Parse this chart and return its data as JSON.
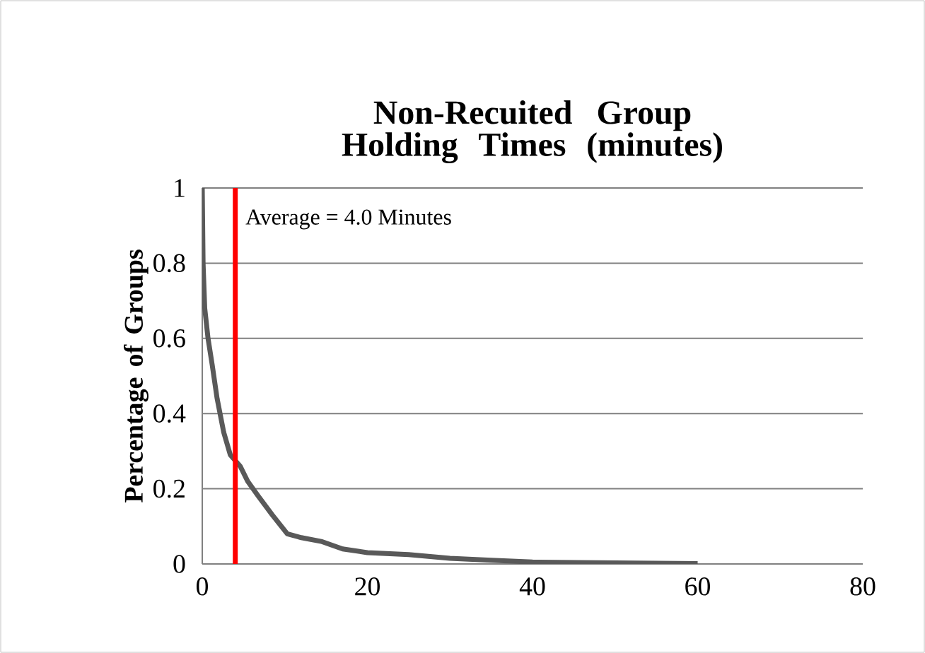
{
  "chart_data": {
    "type": "line",
    "title": "Non-Recuited Group Holding Times (minutes)",
    "ylabel": "Percentage of Groups",
    "series": [
      {
        "color": "#595959",
        "x": [
          0,
          0.1,
          0.3,
          0.7,
          1.2,
          1.8,
          2.6,
          3.4,
          4.6,
          5.5,
          6.8,
          8.5,
          10.3,
          12,
          14.4,
          17,
          20,
          25,
          30,
          35,
          40,
          45,
          50,
          55,
          60
        ],
        "values": [
          1,
          0.8,
          0.68,
          0.6,
          0.53,
          0.44,
          0.35,
          0.29,
          0.26,
          0.22,
          0.18,
          0.13,
          0.08,
          0.07,
          0.06,
          0.04,
          0.03,
          0.025,
          0.015,
          0.01,
          0.005,
          0.004,
          0.003,
          0.002,
          0.001
        ]
      }
    ],
    "xlim": [
      0,
      80
    ],
    "xticks": [
      0,
      20,
      40,
      60,
      80
    ],
    "ylim": [
      0,
      1
    ],
    "yticks": [
      0,
      0.2,
      0.4,
      0.6,
      0.8,
      1
    ],
    "grid": "y",
    "marker": "none",
    "line_style": "solid",
    "ref_lines": [
      {
        "axis": "x",
        "value": 4.0,
        "label": "Average = 4.0 Minutes",
        "color": "#ff0000"
      }
    ]
  }
}
